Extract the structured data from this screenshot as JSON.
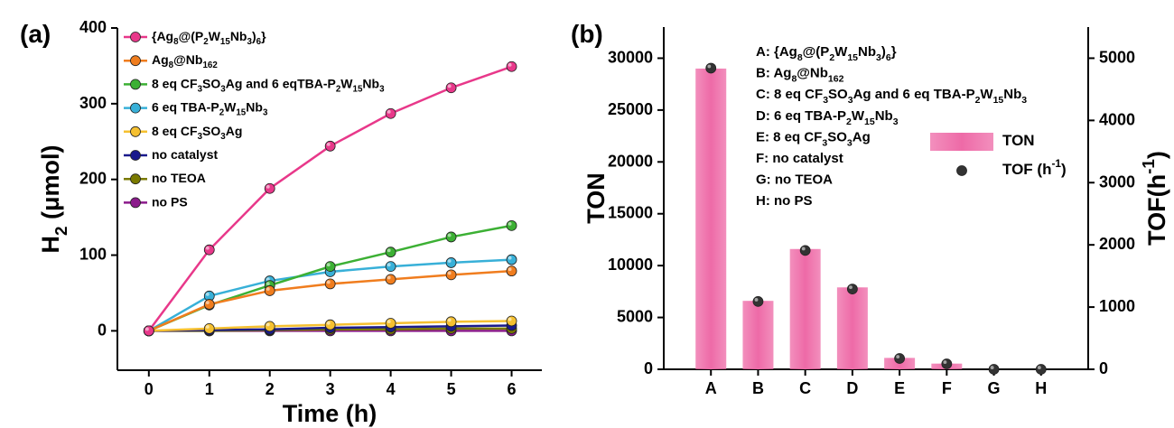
{
  "chart_data": [
    {
      "type": "line",
      "panel_label": "(a)",
      "x_label": "Time (h)",
      "y_label": "H2 (μmol)",
      "x": [
        0,
        1,
        2,
        3,
        4,
        5,
        6
      ],
      "xlim": [
        -0.52,
        6.5
      ],
      "xticks": [
        0,
        1,
        2,
        3,
        4,
        5,
        6
      ],
      "ylim": [
        -52,
        400
      ],
      "yticks": [
        0,
        100,
        200,
        300,
        400
      ],
      "legend": "upper left",
      "series": [
        {
          "name": "{Ag8@(P2W15Nb3)6}",
          "color": "#e8388a",
          "values": [
            0,
            107,
            188,
            244,
            287,
            321,
            349
          ]
        },
        {
          "name": "Ag8@Nb162",
          "color": "#f07d1e",
          "values": [
            0,
            35,
            53,
            62,
            68,
            74,
            79
          ]
        },
        {
          "name": "8 eq CF3SO3Ag and 6 eqTBA-P2W15Nb3",
          "color": "#3cb034",
          "values": [
            0,
            34,
            60,
            85,
            104,
            124,
            139
          ]
        },
        {
          "name": "6 eq TBA-P2W15Nb3",
          "color": "#38b0d8",
          "values": [
            0,
            46,
            66,
            78,
            85,
            90,
            94
          ]
        },
        {
          "name": "8 eq CF3SO3Ag",
          "color": "#f5c030",
          "values": [
            0,
            3,
            6,
            8,
            10,
            12,
            13
          ]
        },
        {
          "name": "no catalyst",
          "color": "#1a1a8c",
          "values": [
            0,
            1,
            2,
            4,
            5,
            6,
            7
          ]
        },
        {
          "name": "no TEOA",
          "color": "#7a7a00",
          "values": [
            0,
            0,
            1,
            2,
            2,
            3,
            3
          ]
        },
        {
          "name": "no PS",
          "color": "#8b1a8b",
          "values": [
            0,
            0,
            0,
            0,
            0,
            0,
            0
          ]
        }
      ]
    },
    {
      "type": "bar",
      "panel_label": "(b)",
      "y_label": "TON",
      "y2_label": "TOF(h-1)",
      "categories": [
        "A",
        "B",
        "C",
        "D",
        "E",
        "F",
        "G",
        "H"
      ],
      "ylim": [
        0,
        33000
      ],
      "yticks": [
        0,
        5000,
        10000,
        15000,
        20000,
        25000,
        30000
      ],
      "y2lim": [
        0,
        5500
      ],
      "y2ticks": [
        0,
        1000,
        2000,
        3000,
        4000,
        5000
      ],
      "annotations": [
        "A: {Ag8@(P2W15Nb3)6}",
        "B: Ag8@Nb162",
        "C: 8 eq CF3SO3Ag and 6 eq TBA-P2W15Nb3",
        "D: 6 eq TBA-P2W15Nb3",
        "E: 8 eq CF3SO3Ag",
        "F: no catalyst",
        "G: no TEOA",
        "H: no PS"
      ],
      "series": [
        {
          "name": "TON",
          "color": "#ee6aa7",
          "values": [
            29000,
            6600,
            11600,
            7900,
            1100,
            550,
            0,
            0
          ]
        },
        {
          "name": "TOF (h-1)",
          "color": "#333333",
          "type": "scatter",
          "axis": "y2",
          "values": [
            4840,
            1090,
            1910,
            1290,
            174,
            87,
            0,
            0
          ]
        }
      ]
    }
  ]
}
